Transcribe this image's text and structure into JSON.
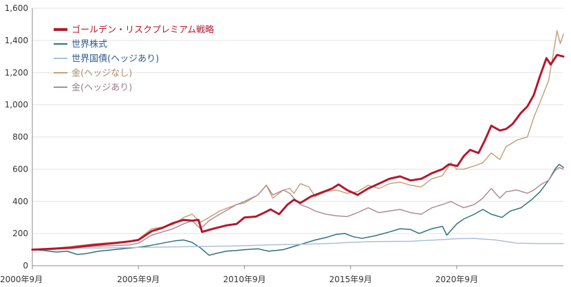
{
  "chart_data": {
    "type": "line",
    "title": "",
    "xlabel": "",
    "ylabel": "",
    "ylim": [
      0,
      1600
    ],
    "xlim": [
      2000.67,
      2025.7
    ],
    "grid": "horizontal",
    "legend_position": "top-left",
    "y_ticks": [
      {
        "value": 0,
        "label": "0"
      },
      {
        "value": 200,
        "label": "200"
      },
      {
        "value": 400,
        "label": "400"
      },
      {
        "value": 600,
        "label": "600"
      },
      {
        "value": 800,
        "label": "800"
      },
      {
        "value": 1000,
        "label": "1,000"
      },
      {
        "value": 1200,
        "label": "1,200"
      },
      {
        "value": 1400,
        "label": "1,400"
      },
      {
        "value": 1600,
        "label": "1,600"
      }
    ],
    "x_ticks": [
      {
        "value": 2000.67,
        "label": "2000年9月"
      },
      {
        "value": 2005.67,
        "label": "2005年9月"
      },
      {
        "value": 2010.67,
        "label": "2010年9月"
      },
      {
        "value": 2015.67,
        "label": "2015年9月"
      },
      {
        "value": 2020.67,
        "label": "2020年9月"
      }
    ],
    "series": [
      {
        "name": "ゴールデン・リスクプレミアム戦略",
        "color": "#b5172b",
        "width": 3,
        "points": [
          [
            2000.67,
            100
          ],
          [
            2001.5,
            105
          ],
          [
            2002.5,
            112
          ],
          [
            2003.5,
            128
          ],
          [
            2004.5,
            140
          ],
          [
            2005.3,
            152
          ],
          [
            2005.67,
            160
          ],
          [
            2006.3,
            215
          ],
          [
            2006.8,
            235
          ],
          [
            2007.3,
            265
          ],
          [
            2007.8,
            285
          ],
          [
            2008.2,
            280
          ],
          [
            2008.5,
            285
          ],
          [
            2008.67,
            210
          ],
          [
            2009.2,
            230
          ],
          [
            2009.8,
            250
          ],
          [
            2010.3,
            260
          ],
          [
            2010.67,
            300
          ],
          [
            2011.2,
            305
          ],
          [
            2011.6,
            330
          ],
          [
            2011.9,
            350
          ],
          [
            2012.3,
            320
          ],
          [
            2012.7,
            380
          ],
          [
            2013.0,
            410
          ],
          [
            2013.3,
            390
          ],
          [
            2013.8,
            430
          ],
          [
            2014.3,
            455
          ],
          [
            2014.8,
            480
          ],
          [
            2015.1,
            505
          ],
          [
            2015.5,
            470
          ],
          [
            2016.0,
            440
          ],
          [
            2016.5,
            480
          ],
          [
            2017.0,
            510
          ],
          [
            2017.5,
            540
          ],
          [
            2018.0,
            555
          ],
          [
            2018.5,
            530
          ],
          [
            2019.0,
            540
          ],
          [
            2019.5,
            575
          ],
          [
            2020.0,
            600
          ],
          [
            2020.3,
            630
          ],
          [
            2020.7,
            620
          ],
          [
            2021.0,
            680
          ],
          [
            2021.3,
            720
          ],
          [
            2021.7,
            700
          ],
          [
            2022.0,
            780
          ],
          [
            2022.3,
            870
          ],
          [
            2022.7,
            840
          ],
          [
            2023.0,
            850
          ],
          [
            2023.3,
            880
          ],
          [
            2023.7,
            950
          ],
          [
            2024.0,
            990
          ],
          [
            2024.3,
            1060
          ],
          [
            2024.6,
            1180
          ],
          [
            2024.9,
            1290
          ],
          [
            2025.1,
            1250
          ],
          [
            2025.4,
            1310
          ],
          [
            2025.7,
            1300
          ]
        ]
      },
      {
        "name": "世界株式",
        "color": "#2d6e80",
        "width": 1.5,
        "points": [
          [
            2000.67,
            100
          ],
          [
            2001.2,
            95
          ],
          [
            2001.8,
            85
          ],
          [
            2002.3,
            90
          ],
          [
            2002.8,
            70
          ],
          [
            2003.2,
            75
          ],
          [
            2003.8,
            90
          ],
          [
            2004.5,
            100
          ],
          [
            2005.3,
            110
          ],
          [
            2005.67,
            115
          ],
          [
            2006.2,
            125
          ],
          [
            2006.8,
            140
          ],
          [
            2007.4,
            155
          ],
          [
            2007.8,
            160
          ],
          [
            2008.2,
            145
          ],
          [
            2008.6,
            110
          ],
          [
            2009.0,
            65
          ],
          [
            2009.3,
            75
          ],
          [
            2009.8,
            90
          ],
          [
            2010.3,
            95
          ],
          [
            2010.67,
            100
          ],
          [
            2011.3,
            105
          ],
          [
            2011.8,
            90
          ],
          [
            2012.5,
            100
          ],
          [
            2013.0,
            120
          ],
          [
            2013.5,
            140
          ],
          [
            2014.0,
            160
          ],
          [
            2014.5,
            175
          ],
          [
            2015.0,
            195
          ],
          [
            2015.4,
            200
          ],
          [
            2015.8,
            180
          ],
          [
            2016.2,
            170
          ],
          [
            2016.8,
            185
          ],
          [
            2017.5,
            210
          ],
          [
            2018.0,
            230
          ],
          [
            2018.5,
            225
          ],
          [
            2018.9,
            200
          ],
          [
            2019.5,
            230
          ],
          [
            2020.0,
            245
          ],
          [
            2020.2,
            190
          ],
          [
            2020.67,
            260
          ],
          [
            2021.0,
            290
          ],
          [
            2021.5,
            320
          ],
          [
            2021.9,
            350
          ],
          [
            2022.3,
            320
          ],
          [
            2022.8,
            300
          ],
          [
            2023.2,
            340
          ],
          [
            2023.7,
            360
          ],
          [
            2024.2,
            410
          ],
          [
            2024.6,
            460
          ],
          [
            2025.0,
            530
          ],
          [
            2025.3,
            600
          ],
          [
            2025.5,
            630
          ],
          [
            2025.7,
            610
          ]
        ]
      },
      {
        "name": "世界国債(ヘッジあり)",
        "color": "#a8c0d8",
        "width": 1.5,
        "points": [
          [
            2000.67,
            100
          ],
          [
            2002.0,
            105
          ],
          [
            2003.5,
            110
          ],
          [
            2005.0,
            112
          ],
          [
            2005.67,
            114
          ],
          [
            2007.0,
            116
          ],
          [
            2008.5,
            120
          ],
          [
            2010.0,
            122
          ],
          [
            2010.67,
            124
          ],
          [
            2012.0,
            130
          ],
          [
            2013.5,
            133
          ],
          [
            2015.0,
            140
          ],
          [
            2015.67,
            145
          ],
          [
            2017.0,
            150
          ],
          [
            2018.5,
            152
          ],
          [
            2020.0,
            162
          ],
          [
            2020.67,
            168
          ],
          [
            2021.5,
            170
          ],
          [
            2022.5,
            160
          ],
          [
            2023.5,
            140
          ],
          [
            2024.5,
            138
          ],
          [
            2025.7,
            138
          ]
        ]
      },
      {
        "name": "金(ヘッジなし)",
        "color": "#c8a07a",
        "width": 1.5,
        "points": [
          [
            2000.67,
            100
          ],
          [
            2001.5,
            105
          ],
          [
            2002.5,
            120
          ],
          [
            2003.5,
            135
          ],
          [
            2004.5,
            145
          ],
          [
            2005.3,
            150
          ],
          [
            2005.67,
            165
          ],
          [
            2006.3,
            230
          ],
          [
            2006.8,
            240
          ],
          [
            2007.3,
            255
          ],
          [
            2007.8,
            300
          ],
          [
            2008.2,
            320
          ],
          [
            2008.6,
            270
          ],
          [
            2009.0,
            300
          ],
          [
            2009.5,
            340
          ],
          [
            2009.9,
            360
          ],
          [
            2010.3,
            380
          ],
          [
            2010.67,
            390
          ],
          [
            2011.3,
            440
          ],
          [
            2011.7,
            500
          ],
          [
            2012.0,
            420
          ],
          [
            2012.5,
            470
          ],
          [
            2012.8,
            480
          ],
          [
            2013.0,
            450
          ],
          [
            2013.3,
            510
          ],
          [
            2013.7,
            490
          ],
          [
            2014.0,
            430
          ],
          [
            2014.5,
            460
          ],
          [
            2015.0,
            470
          ],
          [
            2015.5,
            450
          ],
          [
            2016.0,
            460
          ],
          [
            2016.5,
            500
          ],
          [
            2017.0,
            480
          ],
          [
            2017.5,
            510
          ],
          [
            2018.0,
            520
          ],
          [
            2018.5,
            500
          ],
          [
            2019.0,
            490
          ],
          [
            2019.5,
            540
          ],
          [
            2020.0,
            560
          ],
          [
            2020.4,
            640
          ],
          [
            2020.67,
            600
          ],
          [
            2021.0,
            600
          ],
          [
            2021.5,
            620
          ],
          [
            2021.9,
            640
          ],
          [
            2022.3,
            700
          ],
          [
            2022.7,
            660
          ],
          [
            2023.0,
            740
          ],
          [
            2023.5,
            780
          ],
          [
            2024.0,
            800
          ],
          [
            2024.3,
            920
          ],
          [
            2024.7,
            1050
          ],
          [
            2025.0,
            1150
          ],
          [
            2025.2,
            1300
          ],
          [
            2025.4,
            1460
          ],
          [
            2025.55,
            1380
          ],
          [
            2025.7,
            1440
          ]
        ]
      },
      {
        "name": "金(ヘッジあり)",
        "color": "#b08a96",
        "width": 1.5,
        "points": [
          [
            2000.67,
            100
          ],
          [
            2001.5,
            100
          ],
          [
            2002.5,
            110
          ],
          [
            2003.5,
            120
          ],
          [
            2004.5,
            125
          ],
          [
            2005.3,
            130
          ],
          [
            2005.67,
            140
          ],
          [
            2006.3,
            190
          ],
          [
            2006.8,
            210
          ],
          [
            2007.3,
            230
          ],
          [
            2007.8,
            260
          ],
          [
            2008.2,
            280
          ],
          [
            2008.6,
            230
          ],
          [
            2009.0,
            280
          ],
          [
            2009.5,
            320
          ],
          [
            2009.9,
            350
          ],
          [
            2010.3,
            380
          ],
          [
            2010.67,
            400
          ],
          [
            2011.3,
            440
          ],
          [
            2011.7,
            500
          ],
          [
            2012.0,
            440
          ],
          [
            2012.5,
            470
          ],
          [
            2012.8,
            450
          ],
          [
            2013.0,
            420
          ],
          [
            2013.3,
            380
          ],
          [
            2013.7,
            360
          ],
          [
            2014.0,
            340
          ],
          [
            2014.5,
            320
          ],
          [
            2015.0,
            310
          ],
          [
            2015.5,
            305
          ],
          [
            2016.0,
            330
          ],
          [
            2016.5,
            360
          ],
          [
            2017.0,
            330
          ],
          [
            2017.5,
            340
          ],
          [
            2018.0,
            350
          ],
          [
            2018.5,
            330
          ],
          [
            2019.0,
            320
          ],
          [
            2019.5,
            360
          ],
          [
            2020.0,
            380
          ],
          [
            2020.4,
            400
          ],
          [
            2020.67,
            380
          ],
          [
            2021.0,
            360
          ],
          [
            2021.5,
            380
          ],
          [
            2021.9,
            420
          ],
          [
            2022.3,
            480
          ],
          [
            2022.7,
            420
          ],
          [
            2023.0,
            460
          ],
          [
            2023.5,
            470
          ],
          [
            2024.0,
            450
          ],
          [
            2024.3,
            470
          ],
          [
            2024.7,
            510
          ],
          [
            2025.0,
            530
          ],
          [
            2025.3,
            590
          ],
          [
            2025.5,
            610
          ],
          [
            2025.7,
            600
          ]
        ]
      }
    ]
  },
  "legend": {
    "items": [
      {
        "label": "ゴールデン・リスクプレミアム戦略",
        "color": "#b5172b",
        "text_color": "#b5172b",
        "weight": 4
      },
      {
        "label": "世界株式",
        "color": "#2d6e80",
        "text_color": "#2d5a8a",
        "weight": 2
      },
      {
        "label": "世界国債(ヘッジあり)",
        "color": "#a8c0d8",
        "text_color": "#2d5a8a",
        "weight": 2
      },
      {
        "label": "金(ヘッジなし)",
        "color": "#c8a07a",
        "text_color": "#b08a6a",
        "weight": 2
      },
      {
        "label": "金(ヘッジあり)",
        "color": "#b08a96",
        "text_color": "#9a7a8a",
        "weight": 2
      }
    ]
  }
}
